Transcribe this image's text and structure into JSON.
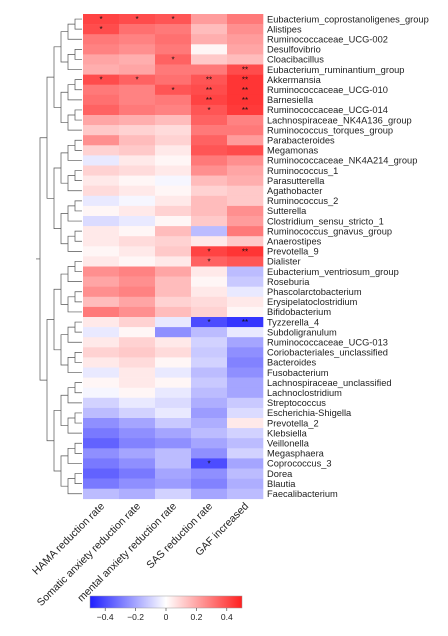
{
  "chart_data": {
    "type": "heatmap",
    "columns": [
      "HAMA reduction rate",
      "Somatic anxiety reduction rate",
      "mental anxiety reduction rate",
      "SAS reduction rate",
      "GAF increased"
    ],
    "rows": [
      "Eubacterium_coprostanoligenes_group",
      "Alistipes",
      "Ruminococcaceae_UCG-002",
      "Desulfovibrio",
      "Cloacibacillus",
      "Eubacterium_ruminantium_group",
      "Akkermansia",
      "Ruminococcaceae_UCG-010",
      "Barnesiella",
      "Ruminococcaceae_UCG-014",
      "Lachnospiraceae_NK4A136_group",
      "Ruminococcus_torques_group",
      "Parabacteroides",
      "Megamonas",
      "Ruminococcaceae_NK4A214_group",
      "Ruminococcus_1",
      "Parasutterella",
      "Agathobacter",
      "Ruminococcus_2",
      "Sutterella",
      "Clostridium_sensu_stricto_1",
      "Ruminococcus_gnavus_group",
      "Anaerostipes",
      "Prevotella_9",
      "Dialister",
      "Eubacterium_ventriosum_group",
      "Roseburia",
      "Phascolarctobacterium",
      "Erysipelatoclostridium",
      "Bifidobacterium",
      "Tyzzerella_4",
      "Subdoligranulum",
      "Ruminococcaceae_UCG-013",
      "Coriobacteriales_unclassified",
      "Bacteroides",
      "Fusobacterium",
      "Lachnospiraceae_unclassified",
      "Lachnoclostridium",
      "Streptococcus",
      "Escherichia-Shigella",
      "Prevotella_2",
      "Klebsiella",
      "Veillonella",
      "Megasphaera",
      "Coprococcus_3",
      "Dorea",
      "Blautia",
      "Faecalibacterium"
    ],
    "values": [
      [
        0.42,
        0.4,
        0.38,
        0.22,
        0.3
      ],
      [
        0.4,
        0.32,
        0.3,
        0.15,
        0.25
      ],
      [
        0.3,
        0.28,
        0.32,
        0.18,
        0.22
      ],
      [
        0.28,
        0.25,
        0.3,
        0.02,
        0.2
      ],
      [
        0.2,
        0.18,
        0.35,
        0.12,
        0.15
      ],
      [
        0.18,
        0.2,
        0.3,
        0.3,
        0.4
      ],
      [
        0.4,
        0.35,
        0.32,
        0.38,
        0.45
      ],
      [
        0.3,
        0.28,
        0.38,
        0.4,
        0.45
      ],
      [
        0.32,
        0.28,
        0.3,
        0.42,
        0.45
      ],
      [
        0.35,
        0.3,
        0.28,
        0.38,
        0.44
      ],
      [
        0.2,
        0.18,
        0.15,
        0.35,
        0.28
      ],
      [
        0.12,
        0.1,
        0.08,
        0.3,
        0.3
      ],
      [
        0.25,
        0.15,
        0.1,
        0.35,
        0.22
      ],
      [
        0.1,
        0.12,
        0.05,
        0.38,
        0.4
      ],
      [
        -0.05,
        0.05,
        0.02,
        0.3,
        0.25
      ],
      [
        0.1,
        0.08,
        0.05,
        0.25,
        0.2
      ],
      [
        0.05,
        0.02,
        -0.02,
        0.15,
        0.18
      ],
      [
        0.08,
        0.05,
        0.02,
        0.1,
        0.12
      ],
      [
        -0.05,
        -0.02,
        0.05,
        0.15,
        0.12
      ],
      [
        0.02,
        0.05,
        0.1,
        0.15,
        0.25
      ],
      [
        -0.08,
        -0.05,
        0.02,
        0.12,
        0.22
      ],
      [
        0.05,
        0.02,
        0.15,
        -0.15,
        0.3
      ],
      [
        0.05,
        0.08,
        0.1,
        0.05,
        0.12
      ],
      [
        0.02,
        0.05,
        0.12,
        0.42,
        0.45
      ],
      [
        0.05,
        0.02,
        0.05,
        0.35,
        0.38
      ],
      [
        0.25,
        0.28,
        0.2,
        0.05,
        -0.15
      ],
      [
        0.2,
        0.25,
        0.15,
        0.02,
        -0.12
      ],
      [
        0.25,
        0.28,
        0.15,
        0.05,
        -0.05
      ],
      [
        0.15,
        0.2,
        0.1,
        0.08,
        0.05
      ],
      [
        0.3,
        0.25,
        0.15,
        0.1,
        0.02
      ],
      [
        0.05,
        0.1,
        -0.05,
        -0.4,
        -0.45
      ],
      [
        -0.05,
        0.02,
        -0.25,
        -0.15,
        -0.05
      ],
      [
        0.05,
        0.1,
        0.05,
        -0.1,
        -0.2
      ],
      [
        0.1,
        0.12,
        0.08,
        -0.12,
        -0.25
      ],
      [
        0.05,
        0.08,
        0.02,
        -0.1,
        -0.28
      ],
      [
        -0.05,
        0.05,
        -0.05,
        -0.15,
        -0.25
      ],
      [
        0.02,
        0.05,
        0.02,
        -0.12,
        -0.2
      ],
      [
        -0.02,
        0.02,
        -0.05,
        -0.15,
        -0.2
      ],
      [
        -0.1,
        -0.05,
        -0.08,
        -0.18,
        -0.12
      ],
      [
        -0.15,
        -0.1,
        -0.05,
        -0.22,
        -0.08
      ],
      [
        -0.25,
        -0.2,
        -0.12,
        -0.18,
        0.05
      ],
      [
        -0.3,
        -0.25,
        -0.2,
        -0.15,
        -0.1
      ],
      [
        -0.35,
        -0.28,
        -0.25,
        -0.2,
        -0.15
      ],
      [
        -0.25,
        -0.2,
        -0.15,
        -0.25,
        -0.1
      ],
      [
        -0.3,
        -0.25,
        -0.15,
        -0.4,
        -0.2
      ],
      [
        -0.35,
        -0.3,
        -0.2,
        -0.25,
        -0.15
      ],
      [
        -0.3,
        -0.25,
        -0.22,
        -0.28,
        -0.18
      ],
      [
        -0.15,
        -0.18,
        -0.1,
        -0.2,
        -0.15
      ]
    ],
    "significance": [
      {
        "row": 0,
        "col": 0,
        "mark": "*"
      },
      {
        "row": 0,
        "col": 1,
        "mark": "*"
      },
      {
        "row": 0,
        "col": 2,
        "mark": "*"
      },
      {
        "row": 1,
        "col": 0,
        "mark": "*"
      },
      {
        "row": 4,
        "col": 2,
        "mark": "*"
      },
      {
        "row": 5,
        "col": 4,
        "mark": "**"
      },
      {
        "row": 6,
        "col": 0,
        "mark": "*"
      },
      {
        "row": 6,
        "col": 1,
        "mark": "*"
      },
      {
        "row": 6,
        "col": 3,
        "mark": "**"
      },
      {
        "row": 6,
        "col": 4,
        "mark": "**"
      },
      {
        "row": 7,
        "col": 2,
        "mark": "*"
      },
      {
        "row": 7,
        "col": 3,
        "mark": "**"
      },
      {
        "row": 7,
        "col": 4,
        "mark": "**"
      },
      {
        "row": 8,
        "col": 3,
        "mark": "**"
      },
      {
        "row": 8,
        "col": 4,
        "mark": "**"
      },
      {
        "row": 9,
        "col": 3,
        "mark": "*"
      },
      {
        "row": 9,
        "col": 4,
        "mark": "**"
      },
      {
        "row": 23,
        "col": 3,
        "mark": "*"
      },
      {
        "row": 23,
        "col": 4,
        "mark": "**"
      },
      {
        "row": 24,
        "col": 3,
        "mark": "*"
      },
      {
        "row": 30,
        "col": 3,
        "mark": "*"
      },
      {
        "row": 30,
        "col": 4,
        "mark": "**"
      },
      {
        "row": 44,
        "col": 3,
        "mark": "*"
      }
    ],
    "color_scale": {
      "min": -0.5,
      "max": 0.5,
      "low_color": "#1f1fff",
      "mid_color": "#ffffff",
      "high_color": "#ff1f1f",
      "ticks": [
        -0.4,
        -0.2,
        0,
        0.2,
        0.4
      ],
      "tick_labels": [
        "−0.4",
        "−0.2",
        "0",
        "0.2",
        "0.4"
      ]
    }
  }
}
